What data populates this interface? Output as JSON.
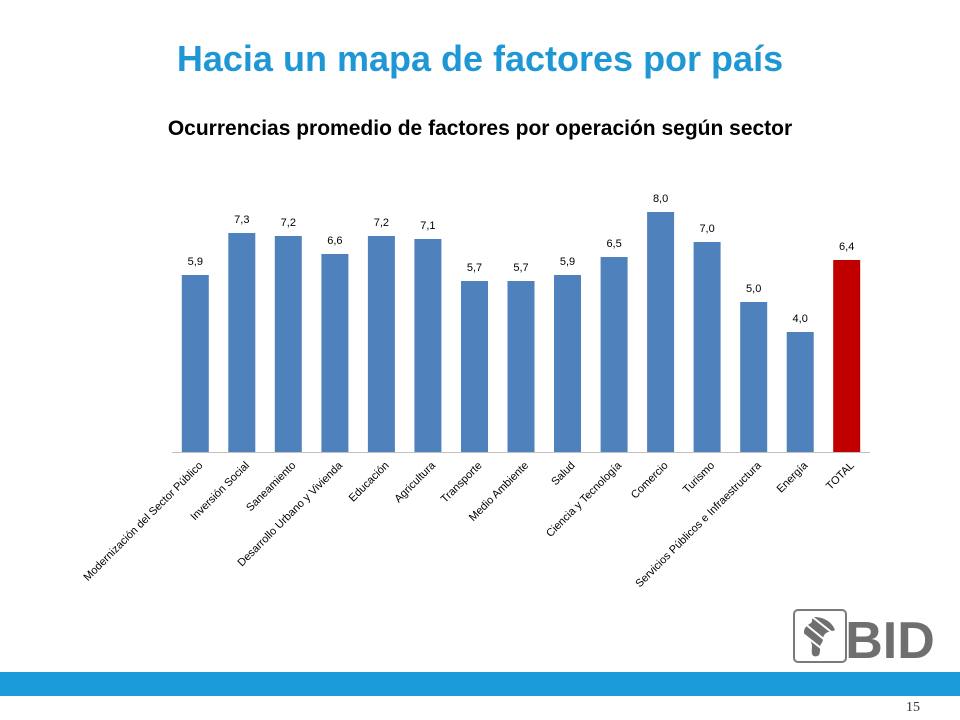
{
  "slide": {
    "title": "Hacia un mapa de factores por país",
    "page_number": "15",
    "logo_text": "BID"
  },
  "colors": {
    "title": "#1f97d4",
    "bar": "#4f81bd",
    "highlight_bar": "#c00000",
    "footer_bar": "#1a9ad6"
  },
  "chart_data": {
    "type": "bar",
    "title": "Ocurrencias promedio de factores por operación según sector",
    "categories": [
      "Modernización del Sector Público",
      "Inversión Social",
      "Saneamiento",
      "Desarrollo Urbano y Vivienda",
      "Educación",
      "Agricultura",
      "Transporte",
      "Medio Ambiente",
      "Salud",
      "Ciencia y Tecnología",
      "Comercio",
      "Turismo",
      "Servicios Públicos e Infraestructura",
      "Energía",
      "TOTAL"
    ],
    "values": [
      5.9,
      7.3,
      7.2,
      6.6,
      7.2,
      7.1,
      5.7,
      5.7,
      5.9,
      6.5,
      8.0,
      7.0,
      5.0,
      4.0,
      6.4
    ],
    "data_labels": [
      "5,9",
      "7,3",
      "7,2",
      "6,6",
      "7,2",
      "7,1",
      "5,7",
      "5,7",
      "5,9",
      "6,5",
      "8,0",
      "7,0",
      "5,0",
      "4,0",
      "6,4"
    ],
    "highlight_category": "TOTAL",
    "ylim": [
      0,
      9
    ],
    "grid": false,
    "legend": "none",
    "xlabel": "",
    "ylabel": ""
  }
}
